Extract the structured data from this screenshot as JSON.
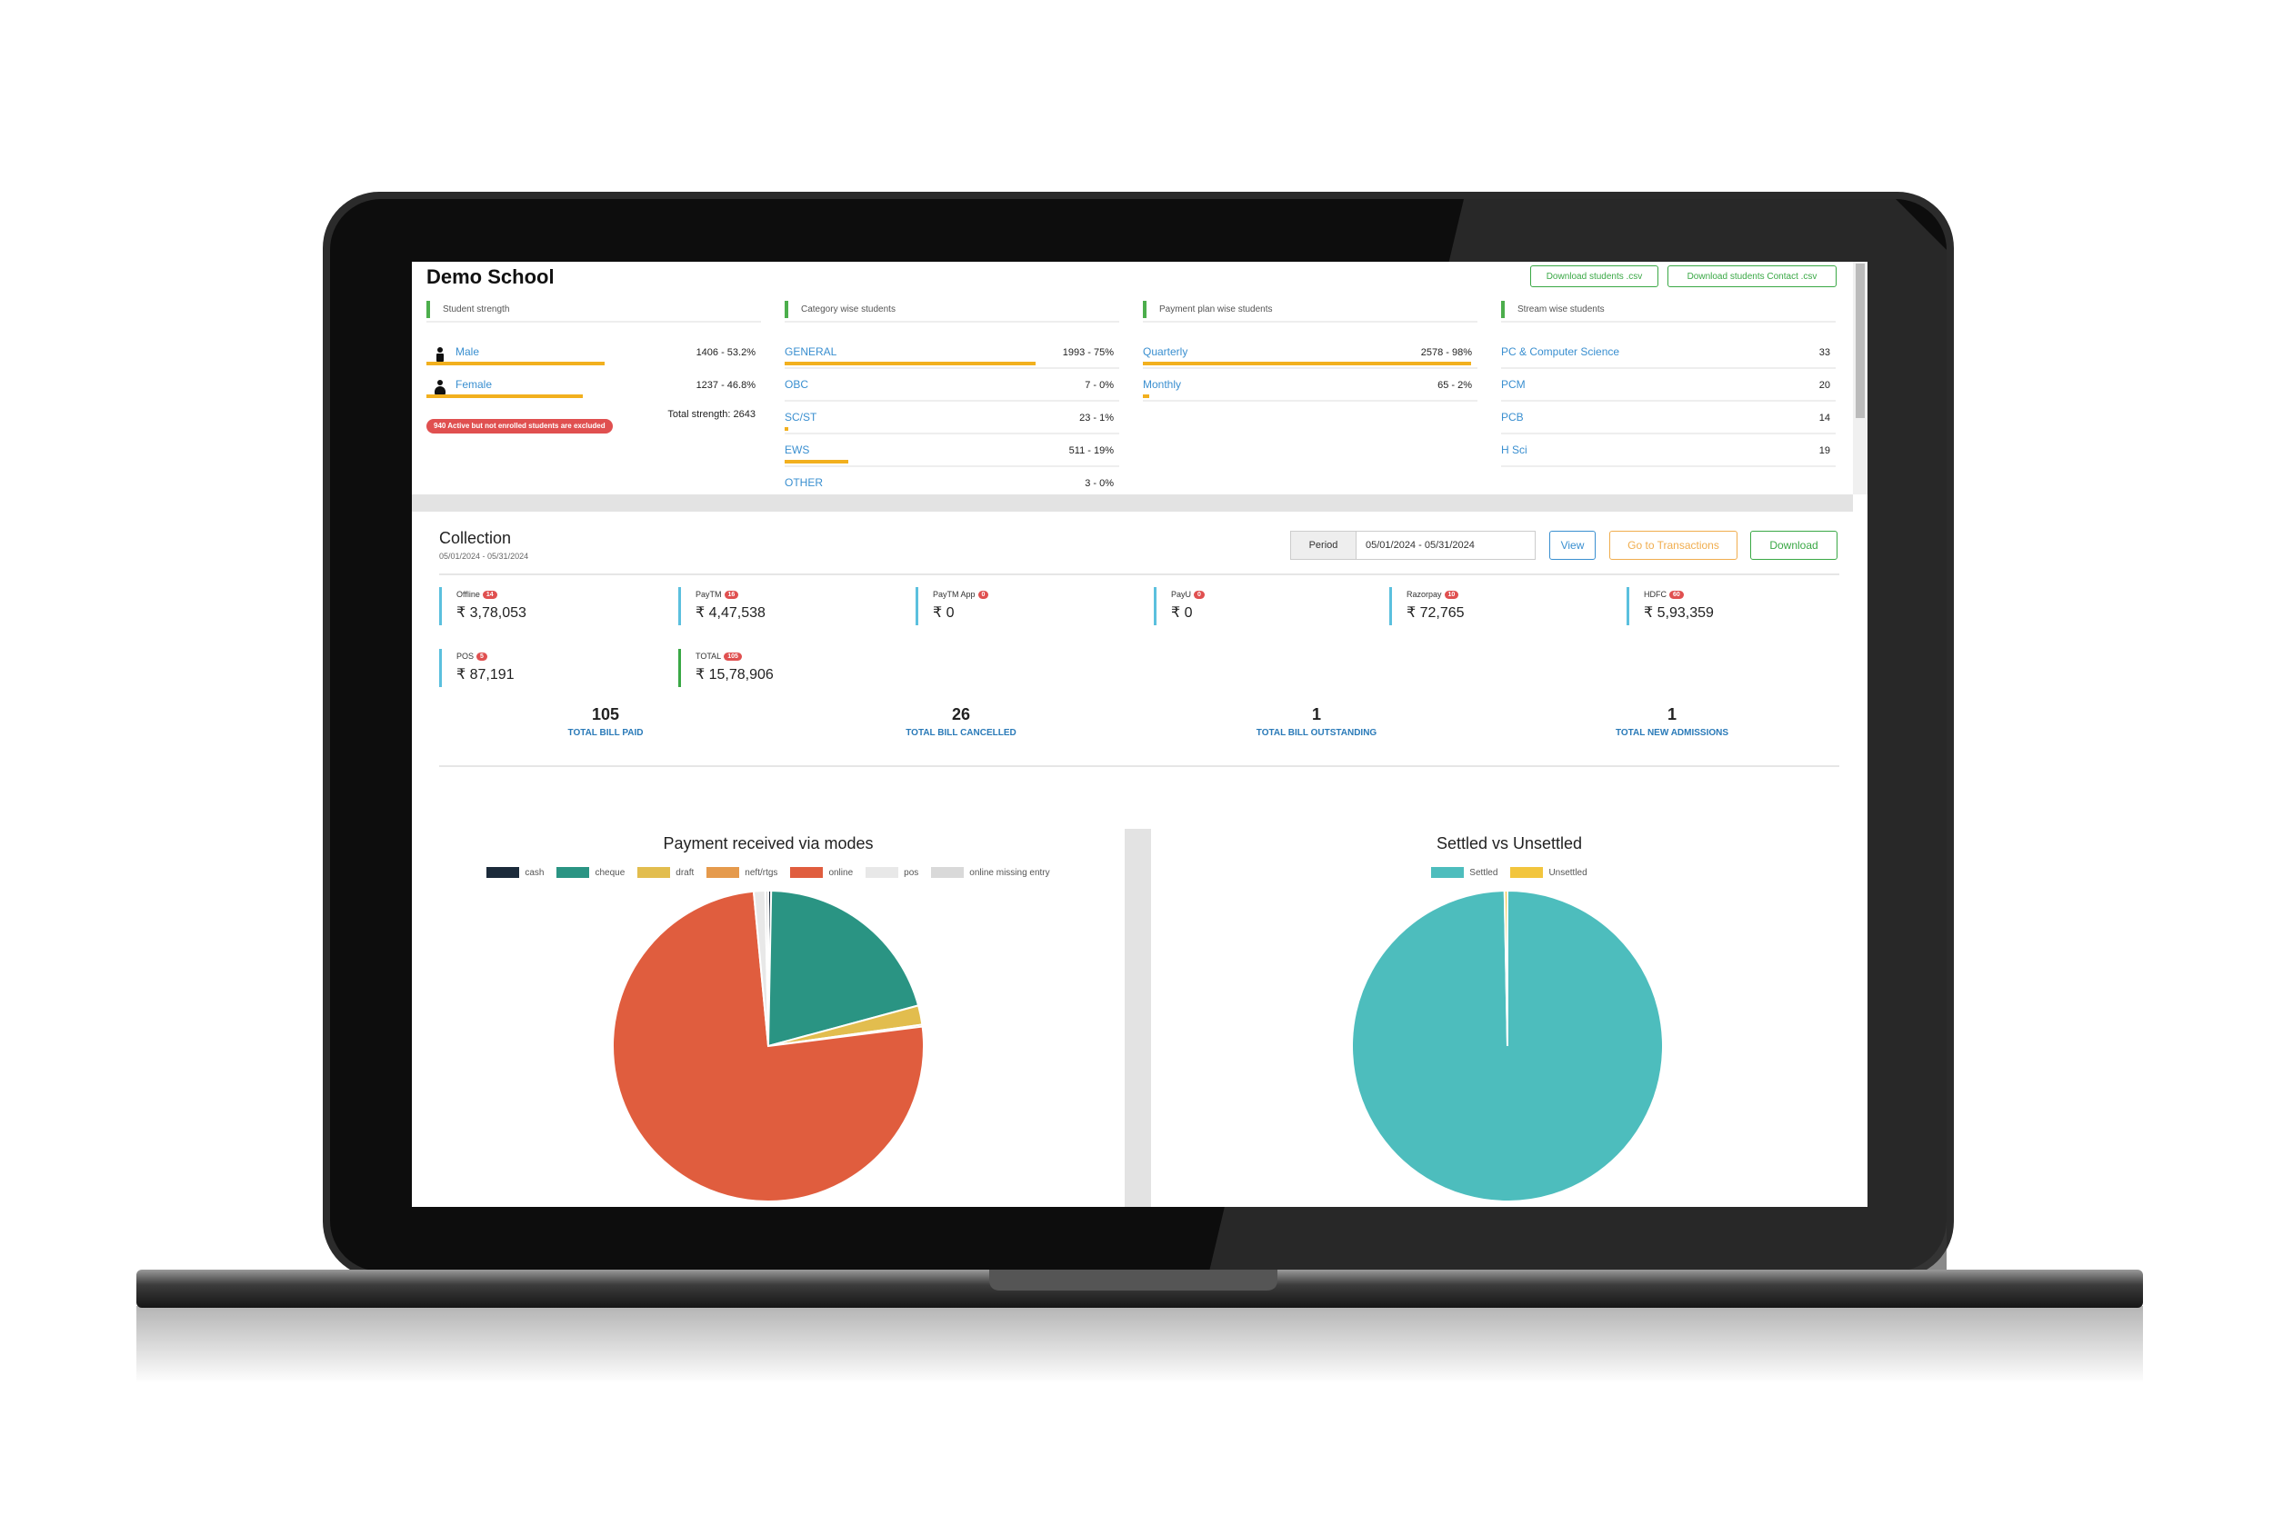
{
  "header": {
    "title": "Demo School",
    "buttons": [
      "Download students .csv",
      "Download students Contact .csv"
    ]
  },
  "panels": [
    {
      "title": "Student strength",
      "rows": [
        {
          "label": "Male",
          "value": "1406 - 53.2%",
          "percent": 53.2
        },
        {
          "label": "Female",
          "value": "1237 - 46.8%",
          "percent": 46.8
        }
      ],
      "badge": "940 Active but not enrolled students are excluded",
      "total": "Total strength: 2643"
    },
    {
      "title": "Category wise students",
      "rows": [
        {
          "label": "GENERAL",
          "value": "1993 - 75%",
          "percent": 75
        },
        {
          "label": "OBC",
          "value": "7 - 0%",
          "percent": 0
        },
        {
          "label": "SC/ST",
          "value": "23 - 1%",
          "percent": 1
        },
        {
          "label": "EWS",
          "value": "511 - 19%",
          "percent": 19
        },
        {
          "label": "OTHER",
          "value": "3 - 0%",
          "percent": 0
        }
      ]
    },
    {
      "title": "Payment plan wise students",
      "rows": [
        {
          "label": "Quarterly",
          "value": "2578 - 98%",
          "percent": 98
        },
        {
          "label": "Monthly",
          "value": "65 - 2%",
          "percent": 2
        }
      ]
    },
    {
      "title": "Stream wise students",
      "rows": [
        {
          "label": "PC & Computer Science",
          "value": 33
        },
        {
          "label": "PCM",
          "value": 20
        },
        {
          "label": "PCB",
          "value": 14
        },
        {
          "label": "H Sci",
          "value": 19
        }
      ]
    }
  ],
  "collection": {
    "title": "Collection",
    "date_range": "05/01/2024 - 05/31/2024",
    "period_label": "Period",
    "period_value": "05/01/2024 - 05/31/2024",
    "buttons": [
      "View",
      "Go to Transactions",
      "Download"
    ],
    "tiles": [
      {
        "label": "Offline",
        "count": 14,
        "amount": "₹ 3,78,053"
      },
      {
        "label": "PayTM",
        "count": 16,
        "amount": "₹ 4,47,538"
      },
      {
        "label": "PayTM App",
        "count": 0,
        "amount": "₹ 0"
      },
      {
        "label": "PayU",
        "count": 0,
        "amount": "₹ 0"
      },
      {
        "label": "Razorpay",
        "count": 10,
        "amount": "₹ 72,765"
      },
      {
        "label": "HDFC",
        "count": 60,
        "amount": "₹ 5,93,359"
      },
      {
        "label": "POS",
        "count": 5,
        "amount": "₹ 87,191"
      },
      {
        "label": "TOTAL",
        "count": 105,
        "amount": "₹ 15,78,906"
      }
    ],
    "stats": [
      {
        "value": 105,
        "label": "TOTAL BILL PAID"
      },
      {
        "value": 26,
        "label": "TOTAL BILL CANCELLED"
      },
      {
        "value": 1,
        "label": "TOTAL BILL OUTSTANDING"
      },
      {
        "value": 1,
        "label": "TOTAL NEW ADMISSIONS"
      }
    ]
  },
  "chart_data": [
    {
      "type": "pie",
      "title": "Payment received via modes",
      "categories": [
        "cash",
        "cheque",
        "draft",
        "neft/rtgs",
        "online",
        "pos",
        "online missing entry"
      ],
      "values": [
        0.3,
        20.5,
        2,
        0.2,
        75.5,
        1.2,
        0.3
      ],
      "colors": [
        "#1b2a3a",
        "#2a9483",
        "#e2bd4e",
        "#e59a4c",
        "#e05d3e",
        "#e8e8e8",
        "#d9d9d9"
      ]
    },
    {
      "type": "pie",
      "title": "Settled vs Unsettled",
      "categories": [
        "Settled",
        "Unsettled"
      ],
      "values": [
        99.7,
        0.3
      ],
      "colors": [
        "#4dbdbd",
        "#f2c53d"
      ]
    }
  ]
}
